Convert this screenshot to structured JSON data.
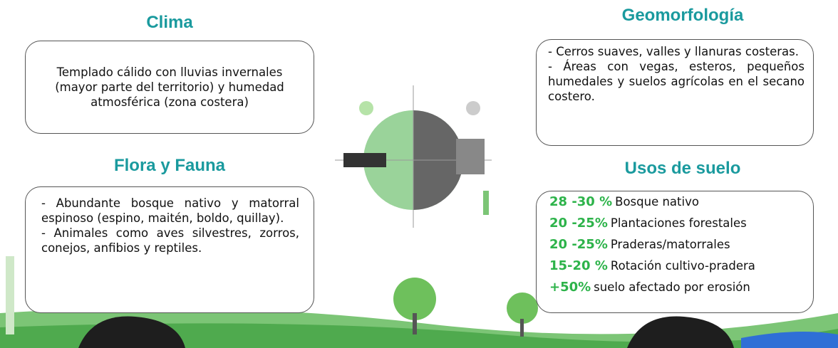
{
  "clima": {
    "title": "Clima",
    "text": "Templado cálido con lluvias invernales (mayor parte del territorio) y humedad atmosférica (zona costera)"
  },
  "flora": {
    "title": "Flora y Fauna",
    "lines": [
      "- Abundante bosque nativo y matorral espinoso (espino, maitén, boldo, quillay).",
      "- Animales como aves silvestres, zorros, conejos, anfibios y reptiles."
    ]
  },
  "geomorfologia": {
    "title": "Geomorfología",
    "lines": [
      "- Cerros suaves, valles y llanuras costeras.",
      "- Áreas con vegas, esteros, pequeños humedales y suelos agrícolas en el secano costero."
    ]
  },
  "usos": {
    "title": "Usos de suelo",
    "items": [
      {
        "range": "28 -30 %",
        "label": "Bosque nativo"
      },
      {
        "range": "20 -25%",
        "label": "Plantaciones forestales"
      },
      {
        "range": "20 -25%",
        "label": "Praderas/matorrales"
      },
      {
        "range": "15-20 %",
        "label": "Rotación cultivo-pradera"
      },
      {
        "range": "+50%",
        "label": "suelo afectado por erosión"
      }
    ]
  }
}
